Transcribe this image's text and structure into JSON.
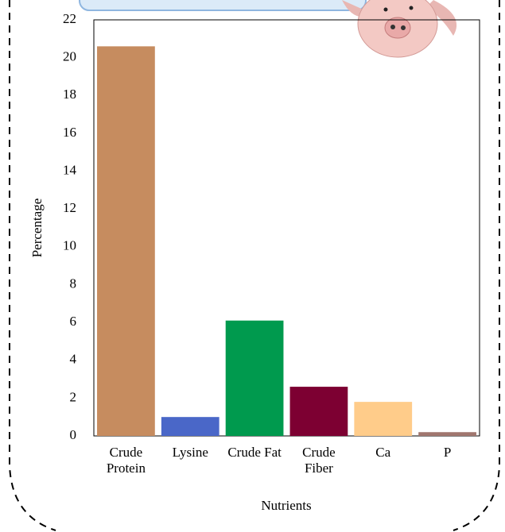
{
  "chart_data": {
    "type": "bar",
    "x_label": "Nutrients",
    "y_label": "Percentage",
    "categories": [
      "Crude Protein",
      "Lysine",
      "Crude Fat",
      "Crude Fiber",
      "Ca",
      "P"
    ],
    "values": [
      20.6,
      1.0,
      6.1,
      2.6,
      1.8,
      0.2
    ],
    "colors": [
      "#c68c5f",
      "#4a67c8",
      "#009a4e",
      "#7d0032",
      "#ffcc8a",
      "#a0766e"
    ],
    "ylim": [
      0,
      22
    ],
    "yticks": [
      0,
      2,
      4,
      6,
      8,
      10,
      12,
      14,
      16,
      18,
      20,
      22
    ],
    "grid": false
  }
}
